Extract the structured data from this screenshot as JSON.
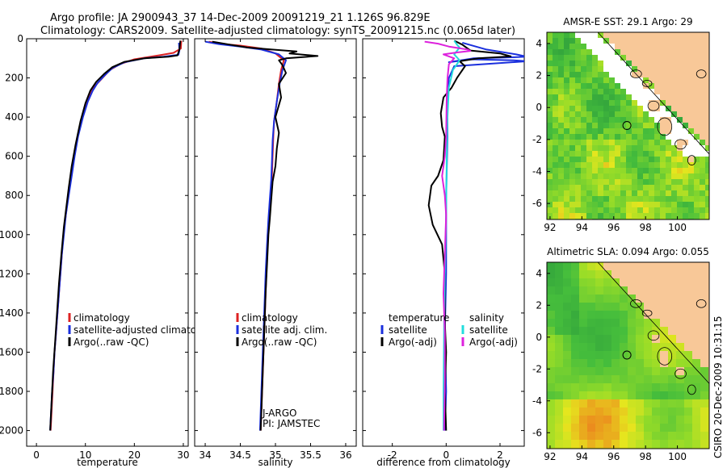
{
  "header": {
    "line1": "Argo profile: JA 2900943_37 14-Dec-2009 20091219_21 1.126S 96.829E",
    "line2": "Climatology: CARS2009. Satellite-adjusted climatology: synTS_20091215.nc (0.065d later)"
  },
  "side_note": "CSIRO 20-Dec-2009 10:31:15",
  "colors": {
    "red": "#dd2222",
    "blue": "#1a2fdd",
    "black": "#000000",
    "cyan": "#22dddd",
    "magenta": "#dd22dd",
    "land": "#f8c898",
    "nodata": "#ffffff"
  },
  "chart_data": [
    {
      "type": "line",
      "xlabel": "temperature",
      "xlim": [
        -2,
        31
      ],
      "ylim": [
        2080,
        0
      ],
      "xticks": [
        0,
        10,
        20,
        30
      ],
      "yticks": [
        0,
        200,
        400,
        600,
        800,
        1000,
        1200,
        1400,
        1600,
        1800,
        2000
      ],
      "legend": {
        "placement": "lower-left",
        "entries": [
          "climatology",
          "satellite-adjusted climatology",
          "Argo(..raw -QC)"
        ]
      },
      "series": [
        {
          "name": "climatology",
          "color": "red",
          "points": [
            [
              29.6,
              10
            ],
            [
              29.5,
              50
            ],
            [
              28,
              72
            ],
            [
              25,
              85
            ],
            [
              20,
              105
            ],
            [
              17,
              130
            ],
            [
              15,
              160
            ],
            [
              13.5,
              200
            ],
            [
              12,
              240
            ],
            [
              11,
              280
            ],
            [
              10.2,
              330
            ],
            [
              9.3,
              400
            ],
            [
              8.4,
              500
            ],
            [
              7.7,
              600
            ],
            [
              7.1,
              700
            ],
            [
              6.5,
              800
            ],
            [
              6,
              900
            ],
            [
              5.5,
              1000
            ],
            [
              5.2,
              1100
            ],
            [
              4.9,
              1200
            ],
            [
              4.6,
              1300
            ],
            [
              4.3,
              1400
            ],
            [
              4,
              1500
            ],
            [
              3.7,
              1600
            ],
            [
              3.5,
              1700
            ],
            [
              3.3,
              1800
            ],
            [
              3.1,
              1900
            ],
            [
              2.9,
              2000
            ]
          ]
        },
        {
          "name": "satellite-adjusted climatology",
          "color": "blue",
          "points": [
            [
              29.1,
              20
            ],
            [
              29.2,
              60
            ],
            [
              29,
              82
            ],
            [
              26,
              92
            ],
            [
              22,
              100
            ],
            [
              18,
              120
            ],
            [
              15.5,
              150
            ],
            [
              14,
              185
            ],
            [
              12.5,
              225
            ],
            [
              11.5,
              265
            ],
            [
              10.5,
              320
            ],
            [
              9.5,
              400
            ],
            [
              8.5,
              500
            ],
            [
              7.8,
              600
            ],
            [
              7.2,
              700
            ],
            [
              6.6,
              800
            ],
            [
              6,
              900
            ],
            [
              5.6,
              1000
            ],
            [
              5.2,
              1100
            ],
            [
              4.9,
              1200
            ],
            [
              4.6,
              1300
            ],
            [
              4.3,
              1400
            ],
            [
              4,
              1500
            ],
            [
              3.7,
              1600
            ],
            [
              3.5,
              1700
            ],
            [
              3.2,
              1800
            ],
            [
              3,
              1900
            ],
            [
              2.8,
              2000
            ]
          ]
        },
        {
          "name": "Argo(..raw -QC)",
          "color": "black",
          "points": [
            [
              29.4,
              10
            ],
            [
              29.2,
              55
            ],
            [
              28.8,
              85
            ],
            [
              27,
              92
            ],
            [
              22,
              100
            ],
            [
              18,
              118
            ],
            [
              15.5,
              145
            ],
            [
              13.8,
              180
            ],
            [
              12.2,
              220
            ],
            [
              11,
              265
            ],
            [
              10,
              330
            ],
            [
              9,
              420
            ],
            [
              8,
              540
            ],
            [
              7.2,
              650
            ],
            [
              6.6,
              760
            ],
            [
              6.1,
              860
            ],
            [
              5.6,
              960
            ],
            [
              5.1,
              1100
            ],
            [
              4.6,
              1250
            ],
            [
              4.2,
              1400
            ],
            [
              3.8,
              1550
            ],
            [
              3.4,
              1700
            ],
            [
              3.1,
              1850
            ],
            [
              2.8,
              2000
            ]
          ]
        }
      ]
    },
    {
      "type": "line",
      "xlabel": "salinity",
      "xlim": [
        33.85,
        36.15
      ],
      "ylim": [
        2080,
        0
      ],
      "xticks": [
        34,
        34.5,
        35,
        35.5,
        36
      ],
      "legend": {
        "placement": "lower-left",
        "entries": [
          "climatology",
          "satellite adj. clim.",
          "Argo(..raw -QC)"
        ]
      },
      "annotations": [
        "J-ARGO",
        "PI: JAMSTEC"
      ],
      "series": [
        {
          "name": "climatology",
          "color": "red",
          "points": [
            [
              34.05,
              15
            ],
            [
              34.2,
              25
            ],
            [
              34.5,
              35
            ],
            [
              34.8,
              50
            ],
            [
              35,
              75
            ],
            [
              35.12,
              110
            ],
            [
              35.08,
              160
            ],
            [
              35.05,
              230
            ],
            [
              35.02,
              320
            ],
            [
              34.98,
              420
            ],
            [
              34.97,
              500
            ],
            [
              34.96,
              600
            ],
            [
              34.95,
              700
            ],
            [
              34.93,
              800
            ],
            [
              34.91,
              900
            ],
            [
              34.89,
              1000
            ],
            [
              34.87,
              1200
            ],
            [
              34.85,
              1400
            ],
            [
              34.83,
              1600
            ],
            [
              34.81,
              1800
            ],
            [
              34.79,
              2000
            ]
          ]
        },
        {
          "name": "satellite adj. clim.",
          "color": "blue",
          "points": [
            [
              34.0,
              15
            ],
            [
              34.2,
              28
            ],
            [
              34.5,
              40
            ],
            [
              34.8,
              55
            ],
            [
              35.05,
              80
            ],
            [
              35.15,
              110
            ],
            [
              35.1,
              160
            ],
            [
              35.06,
              230
            ],
            [
              35.02,
              320
            ],
            [
              34.98,
              420
            ],
            [
              34.96,
              520
            ],
            [
              34.95,
              620
            ],
            [
              34.94,
              720
            ],
            [
              34.92,
              820
            ],
            [
              34.9,
              920
            ],
            [
              34.88,
              1050
            ],
            [
              34.86,
              1200
            ],
            [
              34.84,
              1400
            ],
            [
              34.82,
              1600
            ],
            [
              34.8,
              1800
            ],
            [
              34.78,
              2000
            ]
          ]
        },
        {
          "name": "Argo(..raw -QC)",
          "color": "black",
          "points": [
            [
              34.1,
              15
            ],
            [
              34.35,
              30
            ],
            [
              34.6,
              45
            ],
            [
              34.95,
              55
            ],
            [
              35.3,
              65
            ],
            [
              35.2,
              75
            ],
            [
              35.6,
              88
            ],
            [
              35.15,
              100
            ],
            [
              35.05,
              110
            ],
            [
              35.1,
              135
            ],
            [
              35.15,
              175
            ],
            [
              35.05,
              230
            ],
            [
              35.08,
              300
            ],
            [
              35.0,
              400
            ],
            [
              35.05,
              480
            ],
            [
              35.02,
              560
            ],
            [
              35.0,
              650
            ],
            [
              34.96,
              730
            ],
            [
              34.94,
              820
            ],
            [
              34.92,
              920
            ],
            [
              34.9,
              1000
            ],
            [
              34.88,
              1150
            ],
            [
              34.86,
              1300
            ],
            [
              34.84,
              1500
            ],
            [
              34.82,
              1700
            ],
            [
              34.8,
              1900
            ],
            [
              34.79,
              2000
            ]
          ]
        }
      ]
    },
    {
      "type": "line",
      "xlabel": "difference from climatology",
      "xlim": [
        -3.1,
        2.9
      ],
      "ylim": [
        2080,
        0
      ],
      "xticks": [
        -2,
        0,
        2
      ],
      "legend": {
        "placement": "lower-center",
        "headers": [
          "temperature",
          "salinity"
        ],
        "entries": [
          "satellite",
          "Argo(-adj)",
          "satellite",
          "Argo(-adj)"
        ]
      },
      "series": [
        {
          "name": "temperature satellite",
          "color": "blue",
          "points": [
            [
              0.6,
              20
            ],
            [
              1.5,
              55
            ],
            [
              2.6,
              80
            ],
            [
              3,
              92
            ],
            [
              2.2,
              96
            ],
            [
              1,
              100
            ],
            [
              0.1,
              120
            ],
            [
              0.9,
              105
            ],
            [
              2.5,
              110
            ],
            [
              3,
              115
            ],
            [
              0.3,
              140
            ],
            [
              0.1,
              200
            ],
            [
              0.05,
              300
            ],
            [
              0.05,
              500
            ],
            [
              0,
              800
            ],
            [
              0,
              1200
            ],
            [
              -0.05,
              1500
            ],
            [
              0,
              1800
            ],
            [
              -0.05,
              2000
            ]
          ]
        },
        {
          "name": "temperature Argo(-adj)",
          "color": "black",
          "points": [
            [
              0.3,
              10
            ],
            [
              0.6,
              30
            ],
            [
              0.9,
              60
            ],
            [
              2,
              75
            ],
            [
              2.4,
              90
            ],
            [
              1.2,
              100
            ],
            [
              0.5,
              115
            ],
            [
              0.7,
              140
            ],
            [
              0.4,
              200
            ],
            [
              0.2,
              250
            ],
            [
              -0.1,
              300
            ],
            [
              -0.2,
              380
            ],
            [
              -0.15,
              450
            ],
            [
              -0.05,
              500
            ],
            [
              -0.1,
              620
            ],
            [
              -0.3,
              700
            ],
            [
              -0.55,
              750
            ],
            [
              -0.65,
              850
            ],
            [
              -0.5,
              950
            ],
            [
              -0.15,
              1050
            ],
            [
              -0.05,
              1200
            ],
            [
              -0.05,
              1450
            ],
            [
              0,
              1600
            ],
            [
              -0.05,
              1800
            ],
            [
              0,
              2000
            ]
          ]
        },
        {
          "name": "salinity satellite",
          "color": "cyan",
          "points": [
            [
              0.3,
              10
            ],
            [
              0.4,
              30
            ],
            [
              0.5,
              45
            ],
            [
              0.3,
              80
            ],
            [
              0.5,
              110
            ],
            [
              0.25,
              160
            ],
            [
              0.1,
              250
            ],
            [
              0.05,
              400
            ],
            [
              0.02,
              600
            ],
            [
              0,
              900
            ],
            [
              -0.05,
              1200
            ],
            [
              -0.08,
              1500
            ],
            [
              -0.1,
              1800
            ],
            [
              -0.1,
              2000
            ]
          ]
        },
        {
          "name": "salinity Argo(-adj)",
          "color": "magenta",
          "points": [
            [
              -0.8,
              15
            ],
            [
              -0.3,
              25
            ],
            [
              0.1,
              40
            ],
            [
              0.8,
              55
            ],
            [
              0.9,
              62
            ],
            [
              0.4,
              70
            ],
            [
              -0.1,
              80
            ],
            [
              0.3,
              100
            ],
            [
              0.1,
              130
            ],
            [
              0.05,
              200
            ],
            [
              0.02,
              300
            ],
            [
              0,
              500
            ],
            [
              -0.05,
              600
            ],
            [
              -0.15,
              700
            ],
            [
              -0.05,
              800
            ],
            [
              0,
              900
            ],
            [
              -0.05,
              1100
            ],
            [
              -0.1,
              1300
            ],
            [
              -0.05,
              1500
            ],
            [
              -0.05,
              1750
            ],
            [
              -0.08,
              2000
            ]
          ]
        }
      ]
    },
    {
      "type": "heatmap",
      "title": "AMSR-E SST: 29.1 Argo: 29",
      "xlim": [
        91.8,
        102
      ],
      "ylim": [
        -7,
        4.7
      ],
      "xticks": [
        92,
        94,
        96,
        98,
        100
      ],
      "yticks": [
        4,
        2,
        0,
        -2,
        -4,
        -6
      ],
      "marker": {
        "lon": 96.829,
        "lat": -1.126
      }
    },
    {
      "type": "heatmap",
      "title": "Altimetric SLA: 0.094 Argo: 0.055",
      "xlim": [
        91.8,
        102
      ],
      "ylim": [
        -7,
        4.7
      ],
      "xticks": [
        92,
        94,
        96,
        98,
        100
      ],
      "yticks": [
        4,
        2,
        0,
        -2,
        -4,
        -6
      ],
      "marker": {
        "lon": 96.829,
        "lat": -1.126
      }
    }
  ]
}
